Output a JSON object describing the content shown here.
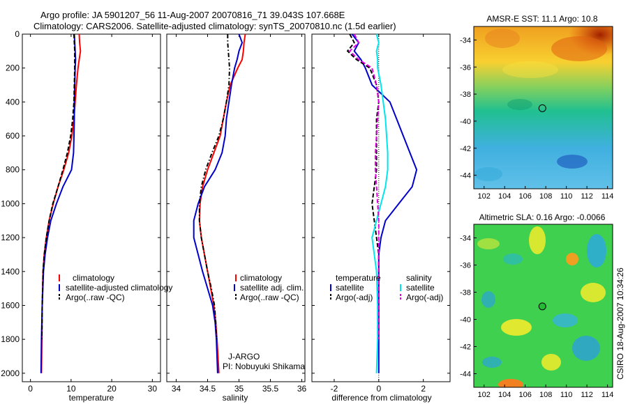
{
  "header": {
    "line1": "Argo profile: JA 5901207_56 11-Aug-2007 20070816_71 39.043S 107.668E",
    "line2": "Climatology: CARS2006. Satellite-adjusted climatology: synTS_20070810.nc (1.5d earlier)"
  },
  "colors": {
    "red": "#ff0000",
    "blue": "#0000cc",
    "black": "#000000",
    "cyan": "#00e5ee",
    "magenta": "#e000e0"
  },
  "chart_data": [
    {
      "type": "line",
      "id": "temperature",
      "xlabel": "temperature",
      "xlim": [
        -2,
        32
      ],
      "ylim": [
        2050,
        0
      ],
      "xticks": [
        0,
        10,
        20,
        30
      ],
      "yticks": [
        0,
        200,
        400,
        600,
        800,
        1000,
        1200,
        1400,
        1600,
        1800,
        2000
      ],
      "legend": [
        "climatology",
        "satellite-adjusted climatology",
        "Argo(..raw -QC)"
      ],
      "series": [
        {
          "name": "climatology",
          "color": "red",
          "dash": "solid",
          "x": [
            12.0,
            12.1,
            12.3,
            12.0,
            11.7,
            11.3,
            11.0,
            10.7,
            10.2,
            9.4,
            8.2,
            6.8,
            5.6,
            4.6,
            3.9,
            3.4,
            3.1,
            2.9,
            2.8,
            2.7
          ],
          "y": [
            0,
            50,
            100,
            150,
            200,
            300,
            400,
            500,
            600,
            700,
            800,
            900,
            1000,
            1100,
            1200,
            1300,
            1400,
            1600,
            1800,
            2000
          ]
        },
        {
          "name": "satellite-adjusted climatology",
          "color": "blue",
          "dash": "solid",
          "x": [
            10.8,
            10.9,
            11.0,
            11.1,
            11.0,
            10.9,
            10.8,
            10.8,
            10.7,
            10.6,
            10.1,
            8.0,
            6.4,
            5.0,
            4.2,
            3.6,
            3.2,
            2.9,
            2.7,
            2.6
          ],
          "y": [
            0,
            50,
            100,
            150,
            200,
            300,
            400,
            500,
            600,
            700,
            800,
            900,
            1000,
            1100,
            1200,
            1300,
            1400,
            1600,
            1800,
            2000
          ]
        },
        {
          "name": "Argo(..raw -QC)",
          "color": "black",
          "dash": "dash",
          "x": [
            10.7,
            10.8,
            10.9,
            10.9,
            10.9,
            10.8,
            10.7,
            10.4,
            9.9,
            9.1,
            8.0,
            6.8,
            5.5,
            4.6,
            3.9,
            3.4,
            3.1,
            2.9,
            2.8
          ],
          "y": [
            0,
            50,
            100,
            150,
            200,
            300,
            400,
            500,
            600,
            700,
            800,
            900,
            1000,
            1100,
            1200,
            1300,
            1400,
            1600,
            1800
          ]
        }
      ]
    },
    {
      "type": "line",
      "id": "salinity",
      "xlabel": "salinity",
      "xlim": [
        33.85,
        36.05
      ],
      "ylim": [
        2050,
        0
      ],
      "xticks": [
        34,
        34.5,
        35,
        35.5,
        36
      ],
      "legend": [
        "climatology",
        "satellite adj. clim.",
        "Argo(..raw -QC)"
      ],
      "annotations": [
        "J-ARGO",
        "PI: Nobuyuki Shikama"
      ],
      "series": [
        {
          "name": "climatology",
          "color": "red",
          "dash": "solid",
          "x": [
            35.1,
            35.08,
            35.07,
            35.05,
            34.98,
            34.86,
            34.8,
            34.75,
            34.7,
            34.6,
            34.5,
            34.42,
            34.38,
            34.37,
            34.4,
            34.45,
            34.5,
            34.55,
            34.6,
            34.63,
            34.65,
            34.68
          ],
          "y": [
            0,
            50,
            100,
            150,
            200,
            300,
            400,
            500,
            600,
            700,
            800,
            900,
            1000,
            1100,
            1200,
            1300,
            1400,
            1500,
            1600,
            1700,
            1800,
            2000
          ]
        },
        {
          "name": "satellite adj. clim.",
          "color": "blue",
          "dash": "solid",
          "x": [
            35.0,
            35.05,
            35.0,
            34.97,
            34.93,
            34.88,
            34.84,
            34.8,
            34.78,
            34.73,
            34.62,
            34.45,
            34.35,
            34.28,
            34.28,
            34.35,
            34.42,
            34.5,
            34.58,
            34.62,
            34.64,
            34.66
          ],
          "y": [
            0,
            50,
            100,
            150,
            200,
            300,
            400,
            500,
            600,
            700,
            800,
            900,
            1000,
            1100,
            1200,
            1300,
            1400,
            1500,
            1600,
            1700,
            1800,
            2000
          ]
        },
        {
          "name": "Argo(..raw -QC)",
          "color": "black",
          "dash": "dashdot",
          "x": [
            34.82,
            34.82,
            34.83,
            34.84,
            34.85,
            34.84,
            34.8,
            34.75,
            34.68,
            34.57,
            34.47,
            34.4,
            34.37,
            34.37,
            34.4,
            34.45,
            34.5,
            34.56,
            34.61,
            34.63,
            34.64
          ],
          "y": [
            0,
            50,
            100,
            150,
            200,
            300,
            400,
            500,
            600,
            700,
            800,
            900,
            1000,
            1100,
            1200,
            1300,
            1400,
            1500,
            1600,
            1700,
            1800
          ]
        }
      ]
    },
    {
      "type": "line",
      "id": "difference",
      "xlabel": "difference from climatology",
      "xlim": [
        -3,
        3.2
      ],
      "ylim": [
        2050,
        0
      ],
      "xticks": [
        -2,
        0,
        2
      ],
      "legend_groups": [
        {
          "title": "temperature",
          "entries": [
            "satellite",
            "Argo(-adj)"
          ]
        },
        {
          "title": "salinity",
          "entries": [
            "satellite",
            "Argo(-adj)"
          ]
        }
      ],
      "series": [
        {
          "name": "temperature satellite",
          "color": "blue",
          "dash": "solid",
          "x": [
            -1.2,
            -0.9,
            -1.1,
            -0.8,
            -0.6,
            -0.3,
            0.5,
            0.8,
            1.1,
            1.4,
            1.7,
            1.5,
            0.9,
            0.3,
            0.1,
            0.0,
            0.0,
            0.0,
            0.0,
            0.0
          ],
          "y": [
            0,
            50,
            100,
            150,
            200,
            300,
            400,
            500,
            600,
            700,
            800,
            900,
            1000,
            1100,
            1200,
            1300,
            1400,
            1600,
            1800,
            2000
          ]
        },
        {
          "name": "temperature Argo(-adj)",
          "color": "black",
          "dash": "dash",
          "x": [
            -1.3,
            -1.1,
            -1.4,
            -1.0,
            -0.4,
            -0.1,
            0.0,
            -0.1,
            -0.1,
            -0.1,
            -0.1,
            -0.2,
            -0.3,
            -0.2,
            -0.1,
            0.0,
            0.0,
            0.0,
            0.0
          ],
          "y": [
            0,
            50,
            100,
            150,
            200,
            300,
            400,
            500,
            600,
            700,
            800,
            900,
            1000,
            1100,
            1200,
            1300,
            1400,
            1600,
            1800
          ]
        },
        {
          "name": "salinity satellite",
          "color": "cyan",
          "dash": "solid",
          "x": [
            -0.1,
            0.0,
            -0.1,
            -0.05,
            -0.05,
            0.1,
            0.2,
            0.3,
            0.35,
            0.4,
            0.4,
            0.3,
            0.1,
            -0.1,
            -0.3,
            -0.2,
            -0.1,
            -0.05,
            -0.05,
            -0.1
          ],
          "y": [
            0,
            50,
            100,
            150,
            200,
            300,
            400,
            500,
            600,
            700,
            800,
            900,
            1000,
            1100,
            1200,
            1300,
            1400,
            1600,
            1800,
            2000
          ]
        },
        {
          "name": "salinity Argo(-adj)",
          "color": "magenta",
          "dash": "dash",
          "x": [
            -1.1,
            -0.9,
            -1.3,
            -0.9,
            -0.3,
            -0.1,
            0.0,
            -0.05,
            -0.1,
            -0.15,
            -0.15,
            -0.1,
            -0.05,
            0.0,
            0.0,
            0.0,
            0.0,
            0.0,
            0.0
          ],
          "y": [
            0,
            50,
            100,
            150,
            200,
            300,
            400,
            500,
            600,
            700,
            800,
            900,
            1000,
            1100,
            1200,
            1300,
            1400,
            1600,
            1800
          ]
        }
      ]
    },
    {
      "type": "heatmap",
      "id": "sst-map",
      "title": "AMSR-E SST: 11.1  Argo: 10.8",
      "xlim": [
        101,
        114.5
      ],
      "ylim": [
        -45,
        -33
      ],
      "xticks": [
        102,
        104,
        106,
        108,
        110,
        112,
        114
      ],
      "yticks": [
        -34,
        -36,
        -38,
        -40,
        -42,
        -44
      ],
      "marker": {
        "x": 107.668,
        "y": -39.043
      }
    },
    {
      "type": "heatmap",
      "id": "sla-map",
      "title": "Altimetric SLA: 0.16  Argo: -0.0066",
      "xlim": [
        101,
        114.5
      ],
      "ylim": [
        -45,
        -33
      ],
      "xticks": [
        102,
        104,
        106,
        108,
        110,
        112,
        114
      ],
      "yticks": [
        -34,
        -36,
        -38,
        -40,
        -42,
        -44
      ],
      "marker": {
        "x": 107.668,
        "y": -39.043
      }
    }
  ],
  "side_label": "CSIRO 18-Aug-2007 10:34:26"
}
